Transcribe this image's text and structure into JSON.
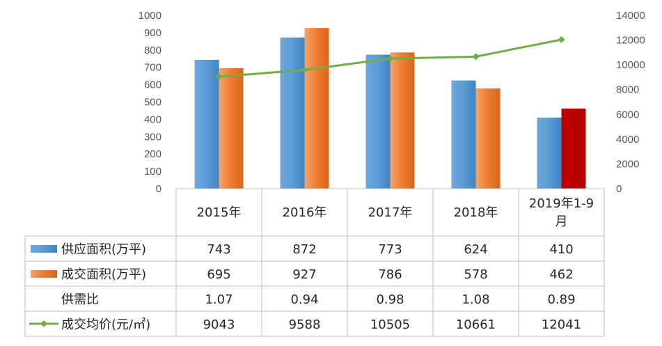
{
  "chart_data": {
    "type": "bar",
    "categories": [
      "2015年",
      "2016年",
      "2017年",
      "2018年",
      "2019年1-9月"
    ],
    "category_lines": [
      [
        "2015年"
      ],
      [
        "2016年"
      ],
      [
        "2017年"
      ],
      [
        "2018年"
      ],
      [
        "2019年1-9",
        "月"
      ]
    ],
    "series": [
      {
        "name": "供应面积(万平)",
        "type": "bar",
        "axis": "left",
        "color": "#5B9BD5",
        "values": [
          743,
          872,
          773,
          624,
          410
        ]
      },
      {
        "name": "成交面积(万平)",
        "type": "bar",
        "axis": "left",
        "color": "#ED7D31",
        "highlight_color": "#C00000",
        "highlight_index": 4,
        "values": [
          695,
          927,
          786,
          578,
          462
        ]
      },
      {
        "name": "成交均价(元/㎡)",
        "type": "line",
        "axis": "right",
        "color": "#70AD47",
        "values": [
          9043,
          9588,
          10505,
          10661,
          12041
        ]
      }
    ],
    "table_rows": [
      {
        "name": "供应面积(万平)",
        "legend": "bar-blue",
        "values": [
          "743",
          "872",
          "773",
          "624",
          "410"
        ]
      },
      {
        "name": "成交面积(万平)",
        "legend": "bar-orange",
        "values": [
          "695",
          "927",
          "786",
          "578",
          "462"
        ]
      },
      {
        "name": "供需比",
        "legend": "none",
        "values": [
          "1.07",
          "0.94",
          "0.98",
          "1.08",
          "0.89"
        ]
      },
      {
        "name": "成交均价(元/㎡)",
        "legend": "line-green",
        "values": [
          "9043",
          "9588",
          "10505",
          "10661",
          "12041"
        ]
      }
    ],
    "y_left": {
      "min": 0,
      "max": 1000,
      "step": 100,
      "ticks": [
        "0",
        "100",
        "200",
        "300",
        "400",
        "500",
        "600",
        "700",
        "800",
        "900",
        "1000"
      ]
    },
    "y_right": {
      "min": 0,
      "max": 14000,
      "step": 2000,
      "ticks": [
        "0",
        "2000",
        "4000",
        "6000",
        "8000",
        "10000",
        "12000",
        "14000"
      ]
    },
    "grid": false,
    "legend": "in data table"
  }
}
